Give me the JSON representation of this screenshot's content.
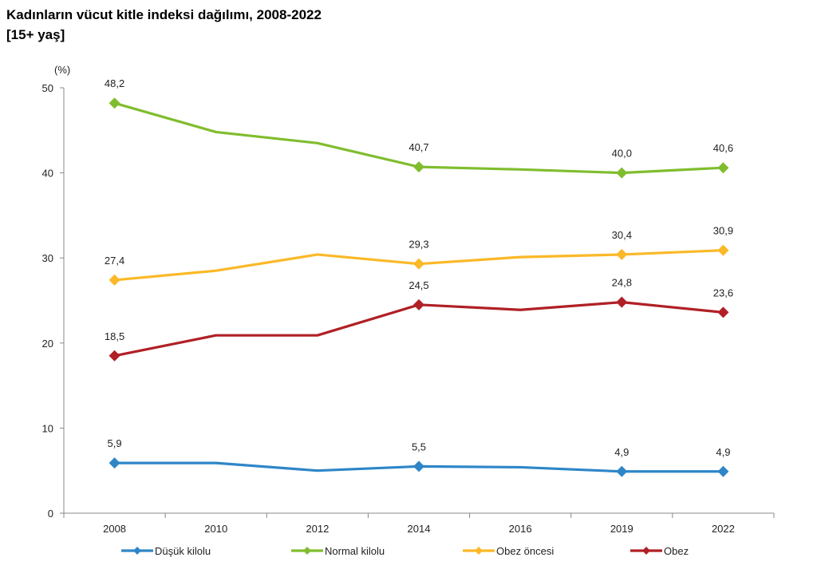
{
  "chart_data": {
    "type": "line",
    "title": "Kadınların vücut kitle indeksi dağılımı, 2008-2022",
    "subtitle": "[15+ yaş]",
    "yunit": "(%)",
    "categories": [
      "2008",
      "2010",
      "2012",
      "2014",
      "2016",
      "2019",
      "2022"
    ],
    "ylim": [
      0,
      50
    ],
    "yticks": [
      "0",
      "10",
      "20",
      "30",
      "40",
      "50"
    ],
    "grid": false,
    "legend_position": "bottom",
    "series": [
      {
        "name": "Düşük kilolu",
        "color": "#2e86c8",
        "values": [
          5.9,
          5.9,
          5.0,
          5.5,
          5.4,
          4.9,
          4.9
        ],
        "labels": [
          "5,9",
          "",
          "",
          "5,5",
          "",
          "4,9",
          "4,9"
        ]
      },
      {
        "name": "Normal kilolu",
        "color": "#80bd2e",
        "values": [
          48.2,
          44.8,
          43.5,
          40.7,
          40.4,
          40.0,
          40.6
        ],
        "labels": [
          "48,2",
          "",
          "",
          "40,7",
          "",
          "40,0",
          "40,6"
        ]
      },
      {
        "name": "Obez öncesi",
        "color": "#fbb827",
        "values": [
          27.4,
          28.5,
          30.4,
          29.3,
          30.1,
          30.4,
          30.9
        ],
        "labels": [
          "27,4",
          "",
          "",
          "29,3",
          "",
          "30,4",
          "30,9"
        ]
      },
      {
        "name": "Obez",
        "color": "#b02025",
        "values": [
          18.5,
          20.9,
          20.9,
          24.5,
          23.9,
          24.8,
          23.6
        ],
        "labels": [
          "18,5",
          "",
          "",
          "24,5",
          "",
          "24,8",
          "23,6"
        ]
      }
    ]
  }
}
